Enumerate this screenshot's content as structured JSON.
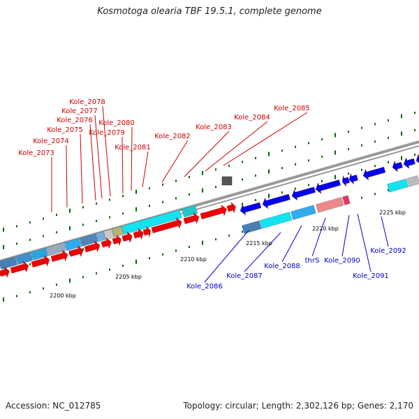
{
  "title": "Kosmotoga olearia TBF 19.5.1, complete genome",
  "footer": {
    "accession": "Accession: NC_012785",
    "topology": "Topology: circular; Length: 2,302,126 bp; Genes: 2,170"
  },
  "colors": {
    "forward_label": "#cc0000",
    "reverse_label": "#0000cc",
    "forward_gene": "#ee0000",
    "reverse_gene": "#0000ee",
    "backbone": "#999999",
    "tick": "#006600"
  },
  "scale_labels": [
    "2200 kbp",
    "2205 kbp",
    "2210 kbp",
    "2215 kbp",
    "2220 kbp",
    "2225 kbp"
  ],
  "forward_labels": [
    "Kole_2073",
    "Kole_2074",
    "Kole_2075",
    "Kole_2076",
    "Kole_2077",
    "Kole_2078",
    "Kole_2079",
    "Kole_2080",
    "Kole_2081",
    "Kole_2082",
    "Kole_2083",
    "Kole_2084",
    "Kole_2085"
  ],
  "reverse_labels": [
    "Kole_2086",
    "Kole_2087",
    "Kole_2088",
    "thrS",
    "Kole_2090",
    "Kole_2091",
    "Kole_2092"
  ]
}
